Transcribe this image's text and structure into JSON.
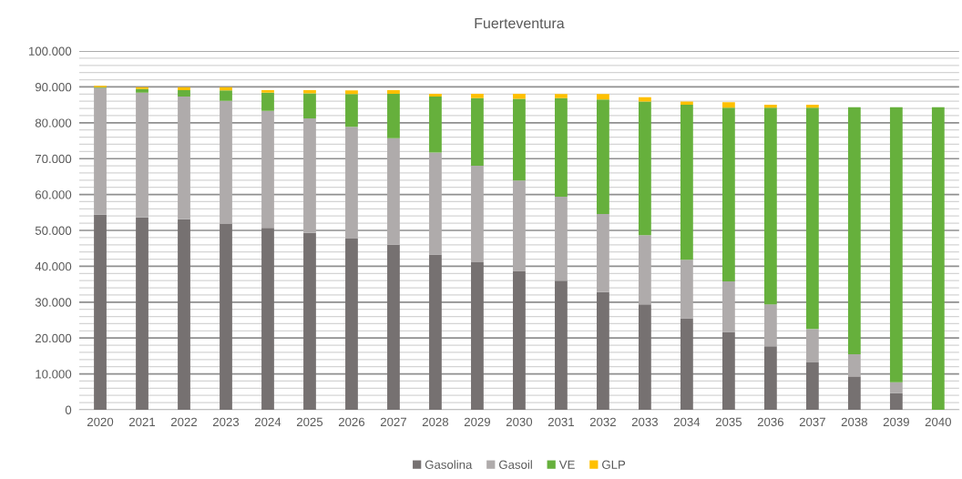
{
  "chart_data": {
    "type": "bar",
    "title": "Fuerteventura",
    "stacked": true,
    "grid": "y",
    "legend": "bottom",
    "categories": [
      "2020",
      "2021",
      "2022",
      "2023",
      "2024",
      "2025",
      "2026",
      "2027",
      "2028",
      "2029",
      "2030",
      "2031",
      "2032",
      "2033",
      "2034",
      "2035",
      "2036",
      "2037",
      "2038",
      "2039",
      "2040"
    ],
    "series": [
      {
        "name": "Gasolina",
        "color": "#767171",
        "values": [
          54400,
          53600,
          53100,
          51900,
          50700,
          49300,
          47700,
          46000,
          43300,
          41100,
          38700,
          36000,
          32800,
          29400,
          25500,
          21700,
          17700,
          13200,
          9300,
          4600,
          0
        ]
      },
      {
        "name": "Gasoil",
        "color": "#afabab",
        "values": [
          35300,
          34800,
          34200,
          34200,
          32600,
          31900,
          31200,
          29700,
          28400,
          26900,
          25200,
          23400,
          21800,
          19300,
          16300,
          14100,
          11700,
          9300,
          6200,
          3100,
          0
        ]
      },
      {
        "name": "VE",
        "color": "#66b03c",
        "values": [
          200,
          1000,
          1800,
          2900,
          5100,
          7000,
          9100,
          12400,
          15600,
          18900,
          22800,
          27500,
          31900,
          37200,
          43200,
          48400,
          54800,
          61700,
          68800,
          76600,
          84300
        ]
      },
      {
        "name": "GLP",
        "color": "#ffc000",
        "values": [
          400,
          500,
          800,
          900,
          700,
          900,
          1000,
          1000,
          800,
          1200,
          1400,
          1100,
          1500,
          1200,
          900,
          1500,
          800,
          800,
          0,
          0,
          0
        ]
      }
    ],
    "ylim": [
      0,
      100000
    ],
    "yticks": [
      0,
      {
        "value": 2000,
        "label": null
      },
      {
        "value": 4000,
        "label": null
      },
      {
        "value": 6000,
        "label": null
      },
      {
        "value": 8000,
        "label": null
      },
      {
        "value": 10000,
        "label": "10.000"
      },
      {
        "value": 12000,
        "label": null
      },
      {
        "value": 14000,
        "label": null
      },
      {
        "value": 16000,
        "label": null
      },
      {
        "value": 18000,
        "label": null
      },
      {
        "value": 20000,
        "label": "20.000"
      },
      {
        "value": 22000,
        "label": null
      },
      {
        "value": 24000,
        "label": null
      },
      {
        "value": 26000,
        "label": null
      },
      {
        "value": 28000,
        "label": null
      },
      {
        "value": 30000,
        "label": "30.000"
      },
      {
        "value": 32000,
        "label": null
      },
      {
        "value": 34000,
        "label": null
      },
      {
        "value": 36000,
        "label": null
      },
      {
        "value": 38000,
        "label": null
      },
      {
        "value": 40000,
        "label": "40.000"
      },
      {
        "value": 42000,
        "label": null
      },
      {
        "value": 44000,
        "label": null
      },
      {
        "value": 46000,
        "label": null
      },
      {
        "value": 48000,
        "label": null
      },
      {
        "value": 50000,
        "label": "50.000"
      },
      {
        "value": 52000,
        "label": null
      },
      {
        "value": 54000,
        "label": null
      },
      {
        "value": 56000,
        "label": null
      },
      {
        "value": 58000,
        "label": null
      },
      {
        "value": 60000,
        "label": "60.000"
      },
      {
        "value": 62000,
        "label": null
      },
      {
        "value": 64000,
        "label": null
      },
      {
        "value": 66000,
        "label": null
      },
      {
        "value": 68000,
        "label": null
      },
      {
        "value": 70000,
        "label": "70.000"
      },
      {
        "value": 72000,
        "label": null
      },
      {
        "value": 74000,
        "label": null
      },
      {
        "value": 76000,
        "label": null
      },
      {
        "value": 78000,
        "label": null
      },
      {
        "value": 80000,
        "label": "80.000"
      },
      {
        "value": 82000,
        "label": null
      },
      {
        "value": 84000,
        "label": null
      },
      {
        "value": 86000,
        "label": null
      },
      {
        "value": 88000,
        "label": null
      },
      {
        "value": 90000,
        "label": "90.000"
      },
      {
        "value": 92000,
        "label": null
      },
      {
        "value": 94000,
        "label": null
      },
      {
        "value": 96000,
        "label": null
      },
      {
        "value": 98000,
        "label": null
      },
      {
        "value": 100000,
        "label": "100.000"
      }
    ]
  }
}
